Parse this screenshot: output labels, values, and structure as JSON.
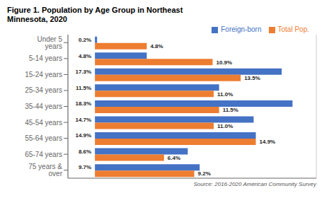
{
  "chart_data": {
    "type": "bar",
    "orientation": "horizontal",
    "title": "Figure 1. Population by Age Group in Northeast",
    "subtitle": "Minnesota, 2020",
    "annotations": [
      "Source: 2016-2020 American Community Survey"
    ],
    "categories": [
      "Under 5 years",
      "5-14 years",
      "15-24 years",
      "25-34 years",
      "35-44 years",
      "45-54 years",
      "55-64 years",
      "65-74 years",
      "75 years & over"
    ],
    "series": [
      {
        "name": "Foreign-born",
        "color": "#4472C4",
        "values": [
          0.2,
          4.8,
          17.3,
          11.5,
          18.3,
          14.7,
          14.9,
          8.6,
          9.7
        ],
        "value_labels": [
          "0.2%",
          "4.8%",
          "17.3%",
          "11.5%",
          "18.3%",
          "14.7%",
          "14.9%",
          "8.6%",
          "9.7%"
        ]
      },
      {
        "name": "Total Pop.",
        "color": "#ED7D31",
        "values": [
          4.8,
          10.9,
          13.5,
          11.0,
          11.5,
          11.0,
          14.9,
          6.4,
          9.2
        ],
        "value_labels": [
          "4.8%",
          "10.9%",
          "13.5%",
          "11.0%",
          "11.5%",
          "11.0%",
          "14.9%",
          "6.4%",
          "9.2%"
        ]
      }
    ],
    "xlim": [
      -2.5,
      20.5
    ],
    "xticks": [
      0,
      5,
      10,
      15,
      20
    ],
    "grid": true,
    "legend": "upper right",
    "data_labels": true,
    "tick_labels": "y"
  }
}
